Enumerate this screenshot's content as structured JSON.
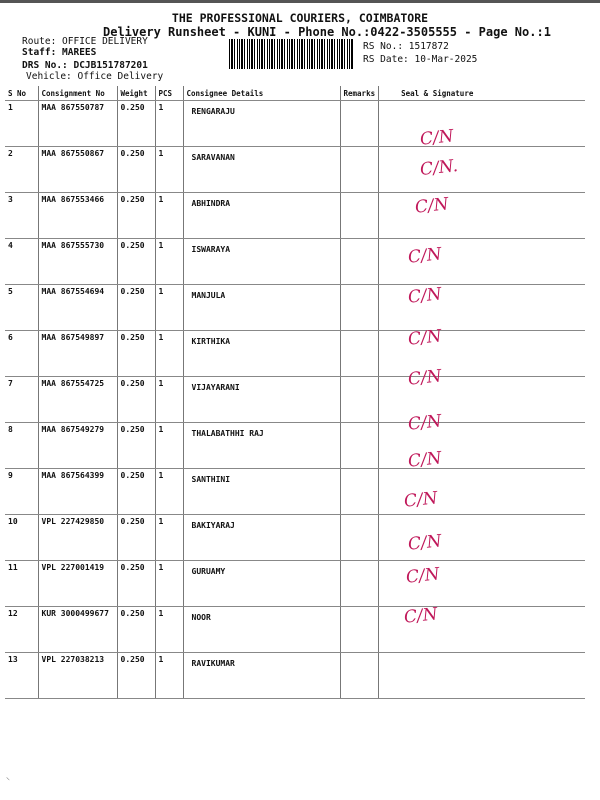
{
  "header": {
    "company": "THE PROFESSIONAL COURIERS, COIMBATORE",
    "subtitle": "Delivery Runsheet - KUNI - Phone No.:0422-3505555 - Page No.:1",
    "route": "Route: OFFICE DELIVERY",
    "staff": "Staff: MAREES",
    "drs": "DRS No.: DCJB151787201",
    "vehicle": "Vehicle: Office Delivery",
    "rs_no": "RS No.: 1517872",
    "rs_date": "RS Date: 10-Mar-2025"
  },
  "table": {
    "columns": [
      "S No",
      "Consignment No",
      "Weight",
      "PCS",
      "Consignee Details",
      "Remarks",
      "Seal & Signature"
    ],
    "rows": [
      {
        "sno": "1",
        "cons": "MAA 867550787",
        "weight": "0.250",
        "pcs": "1",
        "name": "RENGARAJU"
      },
      {
        "sno": "2",
        "cons": "MAA 867550867",
        "weight": "0.250",
        "pcs": "1",
        "name": "SARAVANAN"
      },
      {
        "sno": "3",
        "cons": "MAA 867553466",
        "weight": "0.250",
        "pcs": "1",
        "name": "ABHINDRA"
      },
      {
        "sno": "4",
        "cons": "MAA 867555730",
        "weight": "0.250",
        "pcs": "1",
        "name": "ISWARAYA"
      },
      {
        "sno": "5",
        "cons": "MAA 867554694",
        "weight": "0.250",
        "pcs": "1",
        "name": "MANJULA"
      },
      {
        "sno": "6",
        "cons": "MAA 867549897",
        "weight": "0.250",
        "pcs": "1",
        "name": "KIRTHIKA"
      },
      {
        "sno": "7",
        "cons": "MAA 867554725",
        "weight": "0.250",
        "pcs": "1",
        "name": "VIJAYARANI"
      },
      {
        "sno": "8",
        "cons": "MAA 867549279",
        "weight": "0.250",
        "pcs": "1",
        "name": "THALABATHHI RAJ"
      },
      {
        "sno": "9",
        "cons": "MAA 867564399",
        "weight": "0.250",
        "pcs": "1",
        "name": "SANTHINI"
      },
      {
        "sno": "10",
        "cons": "VPL 227429850",
        "weight": "0.250",
        "pcs": "1",
        "name": "BAKIYARAJ"
      },
      {
        "sno": "11",
        "cons": "VPL 227001419",
        "weight": "0.250",
        "pcs": "1",
        "name": "GURUAMY"
      },
      {
        "sno": "12",
        "cons": "KUR 3000499677",
        "weight": "0.250",
        "pcs": "1",
        "name": "NOOR"
      },
      {
        "sno": "13",
        "cons": "VPL 227038213",
        "weight": "0.250",
        "pcs": "1",
        "name": "RAVIKUMAR"
      }
    ]
  },
  "signatures": [
    "C/N",
    "C/N.",
    "C/N",
    "C/N",
    "C/N",
    "C/N",
    "C/N",
    "C/N",
    "C/N",
    "C/N",
    "C/N",
    "C/N",
    "C/N"
  ],
  "colors": {
    "signature_ink": "#c0185a"
  }
}
